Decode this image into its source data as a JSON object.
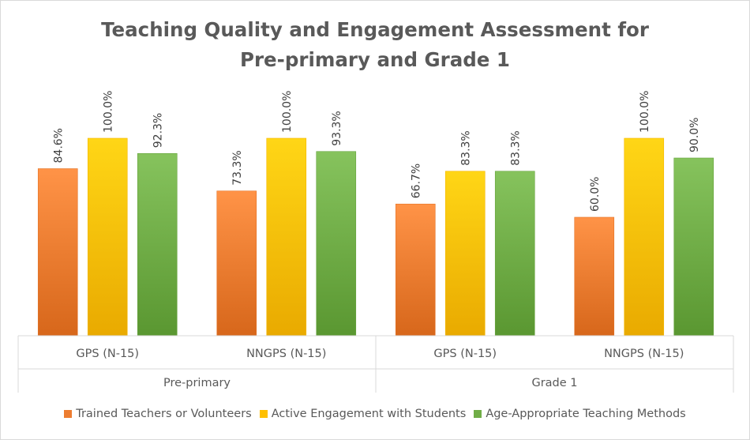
{
  "chart_data": {
    "type": "bar",
    "title_line1": "Teaching Quality and Engagement Assessment for",
    "title_line2": "Pre-primary and Grade 1",
    "groups": [
      "Pre-primary",
      "Grade 1"
    ],
    "categories": [
      "GPS (N-15)",
      "NNGPS (N-15)",
      "GPS (N-15)",
      "NNGPS (N-15)"
    ],
    "category_groups": [
      "Pre-primary",
      "Pre-primary",
      "Grade 1",
      "Grade 1"
    ],
    "series": [
      {
        "name": "Trained Teachers or Volunteers",
        "values": [
          84.6,
          73.3,
          66.7,
          60.0
        ],
        "labels": [
          "84.6%",
          "73.3%",
          "66.7%",
          "60.0%"
        ],
        "color": "#ed7d31"
      },
      {
        "name": "Active Engagement with Students",
        "values": [
          100.0,
          100.0,
          83.3,
          100.0
        ],
        "labels": [
          "100.0%",
          "100.0%",
          "83.3%",
          "100.0%"
        ],
        "color": "#ffc000"
      },
      {
        "name": "Age-Appropriate Teaching Methods",
        "values": [
          92.3,
          93.3,
          83.3,
          90.0
        ],
        "labels": [
          "92.3%",
          "93.3%",
          "83.3%",
          "90.0%"
        ],
        "color": "#70ad47"
      }
    ],
    "ylim": [
      0,
      100
    ],
    "gridlines": false,
    "legend_position": "bottom"
  }
}
